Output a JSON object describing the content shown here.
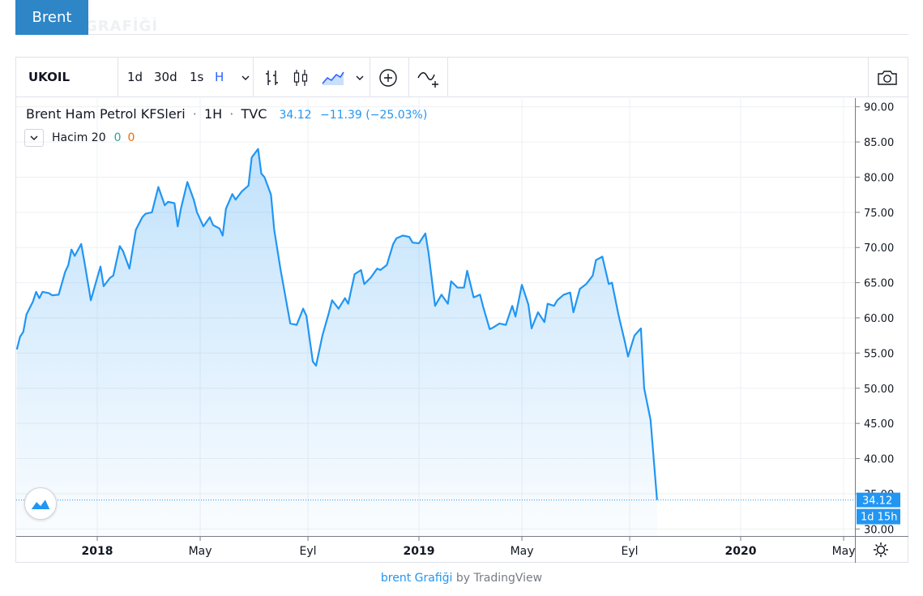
{
  "tabs": {
    "active_label": "Brent",
    "ghost_label": "GRAFİĞİ"
  },
  "toolbar": {
    "symbol": "UKOIL",
    "intervals": [
      "1d",
      "30d",
      "1s",
      "H"
    ],
    "active_interval": "H",
    "icons": [
      "chevron-down-icon",
      "bar-chart-icon",
      "candlestick-icon",
      "area-chart-icon",
      "chevron-down-icon",
      "plus-circle-icon",
      "indicator-icon",
      "camera-icon"
    ]
  },
  "legend": {
    "name": "Brent Ham Petrol KFSleri",
    "interval": "1H",
    "source": "TVC",
    "last": "34.12",
    "change": "−11.39 (−25.03%)",
    "volume_label": "Hacim 20",
    "volume_v1": "0",
    "volume_v2": "0"
  },
  "price_badge": "34.12",
  "countdown_badge": "1d 15h",
  "footer": {
    "link": "brent Grafiği",
    "by": "by TradingView"
  },
  "colors": {
    "line": "#2196f3",
    "accent": "#2e86c7",
    "badge": "#2196f3"
  },
  "chart_data": {
    "type": "area",
    "title": "Brent Ham Petrol KFSleri",
    "ylim": [
      29,
      91
    ],
    "y_ticks": [
      30,
      35,
      40,
      45,
      50,
      55,
      60,
      65,
      70,
      75,
      80,
      85,
      90
    ],
    "y_tick_labels": [
      "30.00",
      "35.00",
      "40.00",
      "45.00",
      "50.00",
      "55.00",
      "60.00",
      "65.00",
      "70.00",
      "75.00",
      "80.00",
      "85.00",
      "90.00"
    ],
    "x_ticks": [
      {
        "label": "2018",
        "t": 0,
        "bold": true
      },
      {
        "label": "May",
        "t": 0.32,
        "bold": false
      },
      {
        "label": "Eyl",
        "t": 0.655,
        "bold": false
      },
      {
        "label": "2019",
        "t": 1.0,
        "bold": true
      },
      {
        "label": "May",
        "t": 1.32,
        "bold": false
      },
      {
        "label": "Eyl",
        "t": 1.655,
        "bold": false
      },
      {
        "label": "2020",
        "t": 2.0,
        "bold": true
      },
      {
        "label": "May",
        "t": 2.32,
        "bold": false
      }
    ],
    "grid": true,
    "last_value": 34.12,
    "series": [
      {
        "values": [
          [
            -0.25,
            55.5
          ],
          [
            -0.24,
            57.3
          ],
          [
            -0.23,
            58.0
          ],
          [
            -0.22,
            60.5
          ],
          [
            -0.2,
            62.3
          ],
          [
            -0.19,
            63.7
          ],
          [
            -0.18,
            62.8
          ],
          [
            -0.17,
            63.7
          ],
          [
            -0.15,
            63.5
          ],
          [
            -0.14,
            63.2
          ],
          [
            -0.12,
            63.3
          ],
          [
            -0.1,
            66.5
          ],
          [
            -0.09,
            67.5
          ],
          [
            -0.08,
            69.7
          ],
          [
            -0.07,
            68.8
          ],
          [
            -0.05,
            70.5
          ],
          [
            -0.04,
            68.0
          ],
          [
            -0.02,
            62.5
          ],
          [
            0.0,
            65.7
          ],
          [
            0.01,
            67.3
          ],
          [
            0.02,
            64.5
          ],
          [
            0.04,
            65.7
          ],
          [
            0.05,
            66.0
          ],
          [
            0.07,
            70.2
          ],
          [
            0.08,
            69.5
          ],
          [
            0.1,
            67.0
          ],
          [
            0.12,
            72.5
          ],
          [
            0.14,
            74.3
          ],
          [
            0.15,
            74.8
          ],
          [
            0.17,
            75.0
          ],
          [
            0.19,
            78.6
          ],
          [
            0.21,
            76.0
          ],
          [
            0.22,
            76.5
          ],
          [
            0.24,
            76.3
          ],
          [
            0.25,
            73.0
          ],
          [
            0.26,
            75.5
          ],
          [
            0.28,
            79.3
          ],
          [
            0.3,
            76.8
          ],
          [
            0.31,
            75.0
          ],
          [
            0.33,
            73.0
          ],
          [
            0.35,
            74.3
          ],
          [
            0.36,
            73.2
          ],
          [
            0.38,
            72.7
          ],
          [
            0.39,
            71.7
          ],
          [
            0.4,
            75.5
          ],
          [
            0.42,
            77.6
          ],
          [
            0.43,
            76.8
          ],
          [
            0.45,
            78.0
          ],
          [
            0.47,
            78.8
          ],
          [
            0.48,
            82.8
          ],
          [
            0.5,
            84.0
          ],
          [
            0.51,
            80.5
          ],
          [
            0.52,
            80.0
          ],
          [
            0.54,
            77.5
          ],
          [
            0.55,
            72.5
          ],
          [
            0.57,
            66.8
          ],
          [
            0.6,
            59.2
          ],
          [
            0.62,
            59.0
          ],
          [
            0.64,
            61.3
          ],
          [
            0.65,
            60.3
          ],
          [
            0.67,
            53.8
          ],
          [
            0.68,
            53.2
          ],
          [
            0.7,
            57.5
          ],
          [
            0.72,
            60.7
          ],
          [
            0.73,
            62.5
          ],
          [
            0.75,
            61.3
          ],
          [
            0.77,
            62.8
          ],
          [
            0.78,
            62.0
          ],
          [
            0.8,
            66.2
          ],
          [
            0.82,
            66.8
          ],
          [
            0.83,
            64.8
          ],
          [
            0.85,
            65.7
          ],
          [
            0.87,
            67.0
          ],
          [
            0.88,
            66.8
          ],
          [
            0.9,
            67.5
          ],
          [
            0.92,
            70.5
          ],
          [
            0.93,
            71.3
          ],
          [
            0.95,
            71.7
          ],
          [
            0.97,
            71.5
          ],
          [
            0.98,
            70.7
          ],
          [
            1.0,
            70.6
          ],
          [
            1.02,
            72.0
          ],
          [
            1.03,
            69.2
          ],
          [
            1.05,
            61.7
          ],
          [
            1.07,
            63.3
          ],
          [
            1.09,
            62.0
          ],
          [
            1.1,
            65.2
          ],
          [
            1.12,
            64.3
          ],
          [
            1.14,
            64.3
          ],
          [
            1.15,
            66.7
          ],
          [
            1.17,
            62.9
          ],
          [
            1.19,
            63.3
          ],
          [
            1.2,
            61.5
          ],
          [
            1.22,
            58.4
          ],
          [
            1.23,
            58.6
          ],
          [
            1.25,
            59.2
          ],
          [
            1.27,
            59.0
          ],
          [
            1.29,
            61.7
          ],
          [
            1.3,
            60.2
          ],
          [
            1.32,
            64.7
          ],
          [
            1.34,
            61.9
          ],
          [
            1.35,
            58.5
          ],
          [
            1.37,
            60.8
          ],
          [
            1.39,
            59.4
          ],
          [
            1.4,
            62.0
          ],
          [
            1.42,
            61.7
          ],
          [
            1.43,
            62.5
          ],
          [
            1.45,
            63.3
          ],
          [
            1.47,
            63.6
          ],
          [
            1.48,
            60.8
          ],
          [
            1.5,
            64.1
          ],
          [
            1.52,
            64.8
          ],
          [
            1.54,
            66.0
          ],
          [
            1.55,
            68.2
          ],
          [
            1.57,
            68.7
          ],
          [
            1.59,
            64.8
          ],
          [
            1.6,
            65.0
          ],
          [
            1.62,
            60.5
          ],
          [
            1.64,
            56.6
          ],
          [
            1.65,
            54.5
          ],
          [
            1.67,
            57.5
          ],
          [
            1.69,
            58.5
          ],
          [
            1.7,
            50.0
          ],
          [
            1.72,
            45.5
          ],
          [
            1.74,
            34.12
          ]
        ]
      }
    ]
  }
}
